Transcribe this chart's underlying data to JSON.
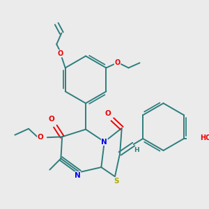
{
  "bg_color": "#ebebeb",
  "bond_color": "#2d7d7d",
  "N_color": "#0000ee",
  "O_color": "#ee0000",
  "S_color": "#aaaa00",
  "line_width": 1.4,
  "figsize": [
    3.0,
    3.0
  ],
  "dpi": 100,
  "xlim": [
    0,
    300
  ],
  "ylim": [
    0,
    300
  ]
}
